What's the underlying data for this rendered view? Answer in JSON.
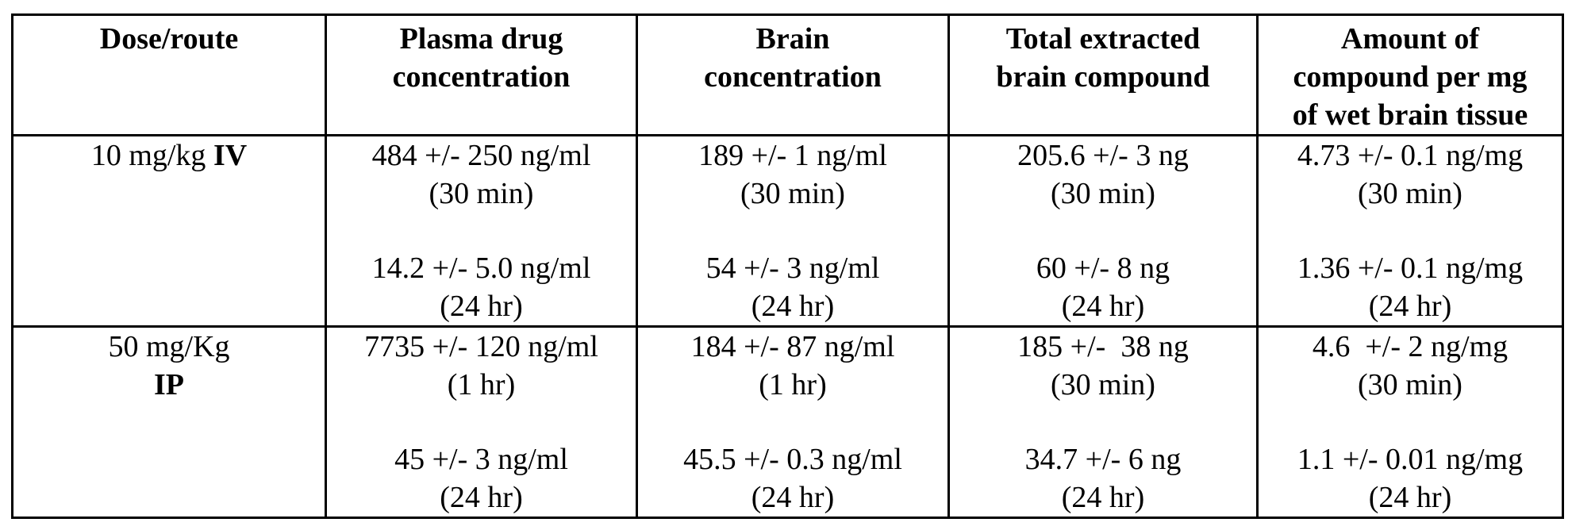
{
  "table": {
    "headers": [
      [
        "Dose/route"
      ],
      [
        "Plasma drug",
        "concentration"
      ],
      [
        "Brain",
        "concentration"
      ],
      [
        "Total extracted",
        "brain compound"
      ],
      [
        "Amount of",
        "compound per mg",
        "of wet brain tissue"
      ]
    ],
    "rows": [
      {
        "dose": "10 mg/kg",
        "route": "IV",
        "plasma": [
          {
            "value": "484 +/- 250 ng/ml",
            "time": "(30 min)"
          },
          {
            "value": "14.2 +/- 5.0 ng/ml",
            "time": "(24 hr)"
          }
        ],
        "brain_conc": [
          {
            "value": "189 +/- 1 ng/ml",
            "time": "(30 min)"
          },
          {
            "value": "54 +/- 3 ng/ml",
            "time": "(24 hr)"
          }
        ],
        "total_extracted": [
          {
            "value": "205.6 +/- 3 ng",
            "time": "(30 min)"
          },
          {
            "value": "60 +/- 8 ng",
            "time": "(24 hr)"
          }
        ],
        "per_mg": [
          {
            "value": "4.73 +/- 0.1 ng/mg",
            "time": "(30 min)"
          },
          {
            "value": "1.36 +/- 0.1 ng/mg",
            "time": "(24 hr)"
          }
        ]
      },
      {
        "dose": "50 mg/Kg",
        "route": "IP",
        "plasma": [
          {
            "value": "7735 +/- 120 ng/ml",
            "time": "(1 hr)"
          },
          {
            "value": "45 +/- 3 ng/ml",
            "time": "(24 hr)"
          }
        ],
        "brain_conc": [
          {
            "value": "184 +/- 87 ng/ml",
            "time": "(1 hr)"
          },
          {
            "value": "45.5 +/- 0.3 ng/ml",
            "time": "(24 hr)"
          }
        ],
        "total_extracted": [
          {
            "value": "185 +/-  38 ng",
            "time": "(30 min)"
          },
          {
            "value": "34.7 +/- 6 ng",
            "time": "(24 hr)"
          }
        ],
        "per_mg": [
          {
            "value": "4.6  +/- 2 ng/mg",
            "time": "(30 min)"
          },
          {
            "value": "1.1 +/- 0.01 ng/mg",
            "time": "(24 hr)"
          }
        ]
      }
    ]
  }
}
